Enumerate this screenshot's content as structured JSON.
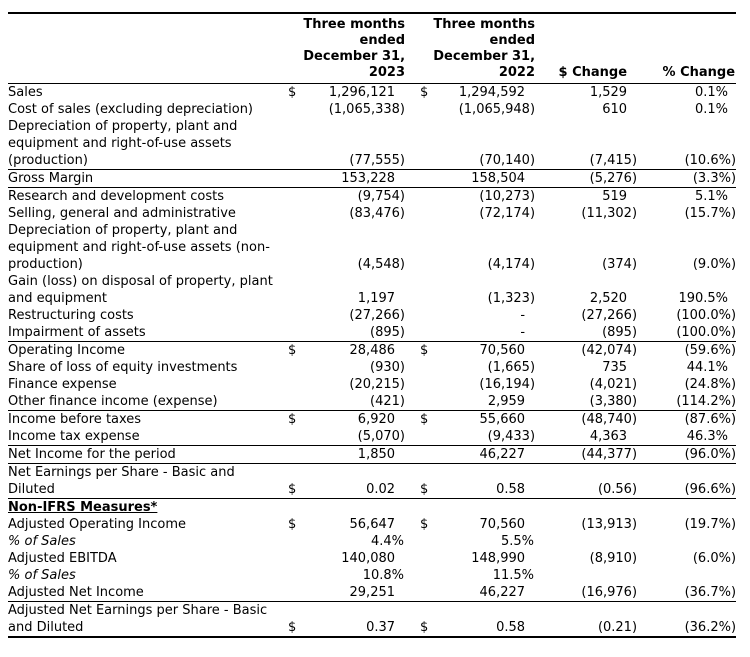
{
  "table": {
    "header": {
      "period_2023": "Three months\nended\nDecember 31,\n2023",
      "period_2022": "Three months\nended\nDecember 31,\n2022",
      "dollar_change": "$ Change",
      "percent_change": "% Change"
    },
    "rows": [
      {
        "label": "Sales",
        "cur1": "$",
        "v1": "1,296,121",
        "cur2": "$",
        "v2": "1,294,592",
        "chg": "1,529",
        "pct": "0.1%"
      },
      {
        "label": "Cost of sales (excluding depreciation)",
        "v1": "(1,065,338)",
        "v2": "(1,065,948)",
        "chg": "610",
        "pct": "0.1%"
      },
      {
        "label": "Depreciation of property, plant and equipment and right-of-use assets (production)",
        "v1": "(77,555)",
        "v2": "(70,140)",
        "chg": "(7,415)",
        "pct": "(10.6%)",
        "rule": true
      },
      {
        "label": "Gross Margin",
        "v1": "153,228",
        "v2": "158,504",
        "chg": "(5,276)",
        "pct": "(3.3%)",
        "rule": true
      },
      {
        "label": "Research and development costs",
        "v1": "(9,754)",
        "v2": "(10,273)",
        "chg": "519",
        "pct": "5.1%"
      },
      {
        "label": "Selling, general and administrative",
        "v1": "(83,476)",
        "v2": "(72,174)",
        "chg": "(11,302)",
        "pct": "(15.7%)"
      },
      {
        "label": "Depreciation of property, plant and equipment and right-of-use assets (non-production)",
        "v1": "(4,548)",
        "v2": "(4,174)",
        "chg": "(374)",
        "pct": "(9.0%)"
      },
      {
        "label": "Gain (loss) on disposal of property, plant and equipment",
        "v1": "1,197",
        "v2": "(1,323)",
        "chg": "2,520",
        "pct": "190.5%"
      },
      {
        "label": "Restructuring costs",
        "v1": "(27,266)",
        "v2": "-",
        "chg": "(27,266)",
        "pct": "(100.0%)"
      },
      {
        "label": "Impairment of assets",
        "v1": "(895)",
        "v2": "-",
        "chg": "(895)",
        "pct": "(100.0%)",
        "rule": true
      },
      {
        "label": "Operating Income",
        "cur1": "$",
        "v1": "28,486",
        "cur2": "$",
        "v2": "70,560",
        "chg": "(42,074)",
        "pct": "(59.6%)"
      },
      {
        "label": "Share of loss of equity investments",
        "v1": "(930)",
        "v2": "(1,665)",
        "chg": "735",
        "pct": "44.1%"
      },
      {
        "label": "Finance expense",
        "v1": "(20,215)",
        "v2": "(16,194)",
        "chg": "(4,021)",
        "pct": "(24.8%)"
      },
      {
        "label": "Other finance income (expense)",
        "v1": "(421)",
        "v2": "2,959",
        "chg": "(3,380)",
        "pct": "(114.2%)",
        "rule": true
      },
      {
        "label": "Income before taxes",
        "cur1": "$",
        "v1": "6,920",
        "cur2": "$",
        "v2": "55,660",
        "chg": "(48,740)",
        "pct": "(87.6%)"
      },
      {
        "label": "Income tax expense",
        "v1": "(5,070)",
        "v2": "(9,433)",
        "chg": "4,363",
        "pct": "46.3%",
        "rule": true
      },
      {
        "label": "Net Income for the period",
        "v1": "1,850",
        "v2": "46,227",
        "chg": "(44,377)",
        "pct": "(96.0%)",
        "rule": true
      },
      {
        "label": "Net Earnings per Share - Basic and Diluted",
        "cur1": "$",
        "v1": "0.02",
        "cur2": "$",
        "v2": "0.58",
        "chg": "(0.56)",
        "pct": "(96.6%)",
        "rule": true
      },
      {
        "label": "Non-IFRS Measures*",
        "heading": true
      },
      {
        "label": "Adjusted Operating Income",
        "cur1": "$",
        "v1": "56,647",
        "cur2": "$",
        "v2": "70,560",
        "chg": "(13,913)",
        "pct": "(19.7%)"
      },
      {
        "label": "% of Sales",
        "italic": true,
        "v1": "4.4%",
        "v2": "5.5%"
      },
      {
        "label": "Adjusted EBITDA",
        "v1": "140,080",
        "v2": "148,990",
        "chg": "(8,910)",
        "pct": "(6.0%)"
      },
      {
        "label": "% of Sales",
        "italic": true,
        "v1": "10.8%",
        "v2": "11.5%"
      },
      {
        "label": "Adjusted Net Income",
        "v1": "29,251",
        "v2": "46,227",
        "chg": "(16,976)",
        "pct": "(36.7%)",
        "rule": true
      },
      {
        "label": "Adjusted Net Earnings per Share - Basic and Diluted",
        "cur1": "$",
        "v1": "0.37",
        "cur2": "$",
        "v2": "0.58",
        "chg": "(0.21)",
        "pct": "(36.2%)"
      }
    ]
  }
}
